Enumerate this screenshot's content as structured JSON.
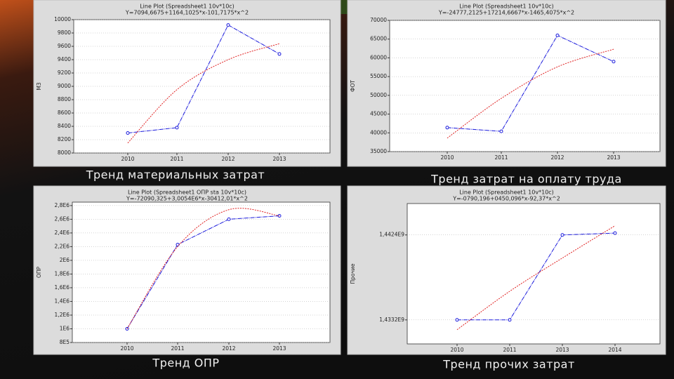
{
  "chart_data": [
    {
      "type": "line",
      "title": "Line Plot (Spreadsheet1 10v*10c)",
      "subtitle": "Y=7094,6675+1164,1025*x-101,7175*x^2",
      "caption": "Тренд материальных затрат",
      "ylabel": "МЗ",
      "categories": [
        "2010",
        "2011",
        "2012",
        "2013"
      ],
      "series": [
        {
          "color": "#1a1adc",
          "markers": true,
          "values": [
            8300,
            8380,
            9920,
            9485
          ]
        },
        {
          "color": "#e02020",
          "markers": false,
          "values": [
            8150,
            8950,
            9400,
            9640
          ]
        }
      ],
      "ylim": [
        8000,
        10000
      ],
      "yticks": [
        8000,
        8200,
        8400,
        8600,
        8800,
        9000,
        9200,
        9400,
        9600,
        9800,
        10000
      ],
      "grid": true
    },
    {
      "type": "line",
      "title": "Line Plot (Spreadsheet1 10v*10c)",
      "subtitle": "Y=-24777,2125+17214,6667*x-1465,4075*x^2",
      "caption": "Тренд затрат на оплату труда",
      "ylabel": "ФОТ",
      "categories": [
        "2010",
        "2011",
        "2012",
        "2013"
      ],
      "series": [
        {
          "color": "#1a1adc",
          "markers": true,
          "values": [
            41400,
            40400,
            66000,
            59000
          ]
        },
        {
          "color": "#e02020",
          "markers": false,
          "values": [
            38600,
            49200,
            57600,
            62300
          ]
        }
      ],
      "ylim": [
        35000,
        70000
      ],
      "yticks": [
        35000,
        40000,
        45000,
        50000,
        55000,
        60000,
        65000,
        70000
      ],
      "grid": true
    },
    {
      "type": "line",
      "title": "Line Plot (Spreadsheet1 OПР sta 10v*10c)",
      "subtitle": "Y=-72090,325+3,0054E6*x-30412,01*x^2",
      "caption": "Тренд ОПР",
      "ylabel": "ОПР",
      "categories": [
        "2010",
        "2011",
        "2012",
        "2013"
      ],
      "series": [
        {
          "color": "#1a1adc",
          "markers": true,
          "values": [
            1000000,
            2230000,
            2600000,
            2650000
          ]
        },
        {
          "color": "#e02020",
          "markers": false,
          "values": [
            1000000,
            2200000,
            2740000,
            2650000
          ]
        }
      ],
      "ylim": [
        800000,
        2850000
      ],
      "yticks": [
        {
          "value": 800000,
          "label": "8E5"
        },
        {
          "value": 1000000,
          "label": "1E6"
        },
        {
          "value": 1200000,
          "label": "1,2E6"
        },
        {
          "value": 1400000,
          "label": "1,4E6"
        },
        {
          "value": 1600000,
          "label": "1,6E6"
        },
        {
          "value": 1800000,
          "label": "1,8E6"
        },
        {
          "value": 2000000,
          "label": "2E6"
        },
        {
          "value": 2200000,
          "label": "2,2E6"
        },
        {
          "value": 2400000,
          "label": "2,4E6"
        },
        {
          "value": 2600000,
          "label": "2,6E6"
        },
        {
          "value": 2800000,
          "label": "2,8E6"
        }
      ],
      "grid": true
    },
    {
      "type": "line",
      "title": "Line Plot (Spreadsheet1 10v*10c)",
      "subtitle": "Y=-0790,196+0450,096*x-92,37*x^2",
      "caption": "Тренд прочих затрат",
      "ylabel": "Прочие",
      "categories": [
        "2010",
        "2011",
        "2013",
        "2014"
      ],
      "series": [
        {
          "color": "#1a1adc",
          "markers": true,
          "values": [
            1433200000,
            1433200000,
            1442400000,
            1442600000
          ]
        },
        {
          "color": "#e02020",
          "markers": false,
          "values": [
            1432140000,
            1436300000,
            1439900000,
            1443400000
          ]
        }
      ],
      "ylim": [
        1430600000,
        1445800000
      ],
      "yticks": [
        {
          "value": 1433200000,
          "label": "1,4332E9"
        },
        {
          "value": 1442400000,
          "label": "1,4424E9"
        }
      ],
      "grid": true
    }
  ]
}
